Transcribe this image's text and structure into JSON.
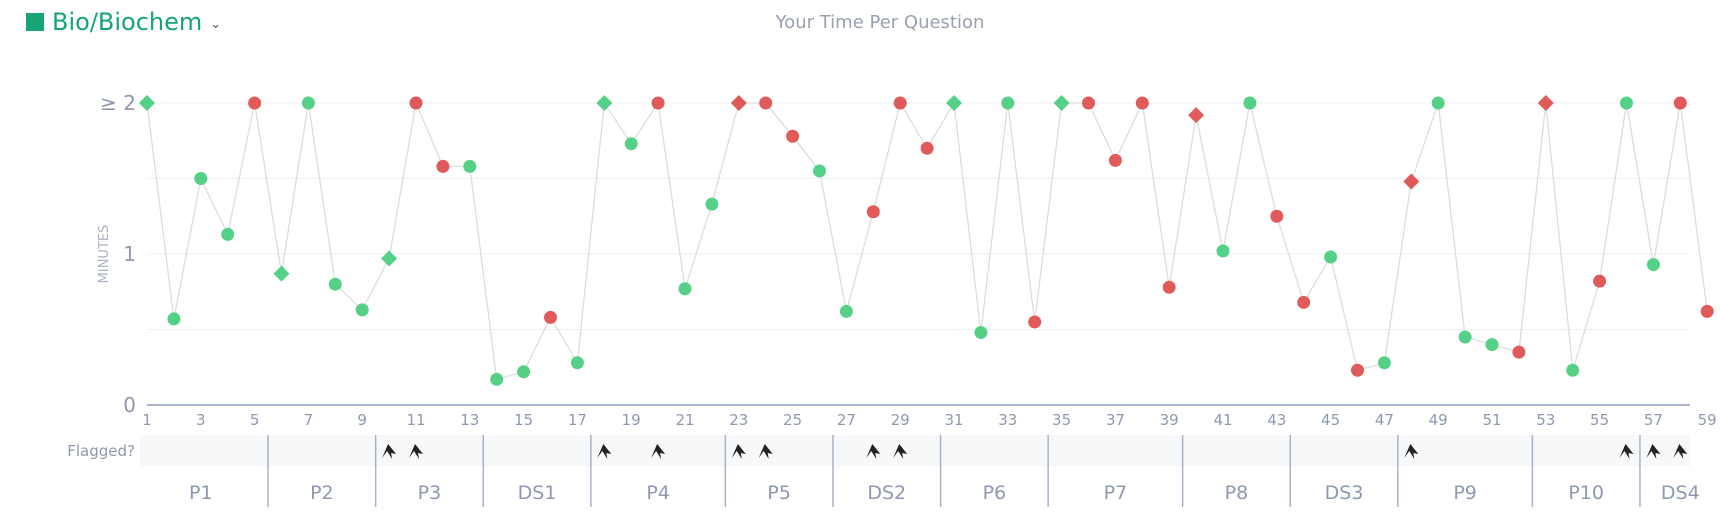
{
  "header": {
    "subject": "Bio/Biochem",
    "subject_color": "#17a673",
    "dropdown_icon": "chevron-down-icon"
  },
  "colors": {
    "correct": "#55d187",
    "incorrect": "#e05a5a",
    "line": "#dddddd",
    "axis": "#a9b3c7",
    "text": "#8e99b0"
  },
  "chart_data": {
    "type": "scatter",
    "title": "Your Time Per Question",
    "ylabel": "MINUTES",
    "xlabel": "",
    "ylim": [
      0,
      2
    ],
    "yticks": [
      {
        "value": 0,
        "label": "0"
      },
      {
        "value": 1,
        "label": "1"
      },
      {
        "value": 2,
        "label": "≥ 2"
      }
    ],
    "xticks": [
      1,
      3,
      5,
      7,
      9,
      11,
      13,
      15,
      17,
      19,
      21,
      23,
      25,
      27,
      29,
      31,
      33,
      35,
      37,
      39,
      41,
      43,
      45,
      47,
      49,
      51,
      53,
      55,
      57,
      59
    ],
    "grid": true,
    "legend": "none",
    "points": [
      {
        "q": 1,
        "minutes": 2.0,
        "status": "correct",
        "shape": "diamond"
      },
      {
        "q": 2,
        "minutes": 0.57,
        "status": "correct",
        "shape": "circle"
      },
      {
        "q": 3,
        "minutes": 1.5,
        "status": "correct",
        "shape": "circle"
      },
      {
        "q": 4,
        "minutes": 1.13,
        "status": "correct",
        "shape": "circle"
      },
      {
        "q": 5,
        "minutes": 2.0,
        "status": "incorrect",
        "shape": "circle"
      },
      {
        "q": 6,
        "minutes": 0.87,
        "status": "correct",
        "shape": "diamond"
      },
      {
        "q": 7,
        "minutes": 2.0,
        "status": "correct",
        "shape": "circle"
      },
      {
        "q": 8,
        "minutes": 0.8,
        "status": "correct",
        "shape": "circle"
      },
      {
        "q": 9,
        "minutes": 0.63,
        "status": "correct",
        "shape": "circle"
      },
      {
        "q": 10,
        "minutes": 0.97,
        "status": "correct",
        "shape": "diamond"
      },
      {
        "q": 11,
        "minutes": 2.0,
        "status": "incorrect",
        "shape": "circle"
      },
      {
        "q": 12,
        "minutes": 1.58,
        "status": "incorrect",
        "shape": "circle"
      },
      {
        "q": 13,
        "minutes": 1.58,
        "status": "correct",
        "shape": "circle"
      },
      {
        "q": 14,
        "minutes": 0.17,
        "status": "correct",
        "shape": "circle"
      },
      {
        "q": 15,
        "minutes": 0.22,
        "status": "correct",
        "shape": "circle"
      },
      {
        "q": 16,
        "minutes": 0.58,
        "status": "incorrect",
        "shape": "circle"
      },
      {
        "q": 17,
        "minutes": 0.28,
        "status": "correct",
        "shape": "circle"
      },
      {
        "q": 18,
        "minutes": 2.0,
        "status": "correct",
        "shape": "diamond"
      },
      {
        "q": 19,
        "minutes": 1.73,
        "status": "correct",
        "shape": "circle"
      },
      {
        "q": 20,
        "minutes": 2.0,
        "status": "incorrect",
        "shape": "circle"
      },
      {
        "q": 21,
        "minutes": 0.77,
        "status": "correct",
        "shape": "circle"
      },
      {
        "q": 22,
        "minutes": 1.33,
        "status": "correct",
        "shape": "circle"
      },
      {
        "q": 23,
        "minutes": 2.0,
        "status": "incorrect",
        "shape": "diamond"
      },
      {
        "q": 24,
        "minutes": 2.0,
        "status": "incorrect",
        "shape": "circle"
      },
      {
        "q": 25,
        "minutes": 1.78,
        "status": "incorrect",
        "shape": "circle"
      },
      {
        "q": 26,
        "minutes": 1.55,
        "status": "correct",
        "shape": "circle"
      },
      {
        "q": 27,
        "minutes": 0.62,
        "status": "correct",
        "shape": "circle"
      },
      {
        "q": 28,
        "minutes": 1.28,
        "status": "incorrect",
        "shape": "circle"
      },
      {
        "q": 29,
        "minutes": 2.0,
        "status": "incorrect",
        "shape": "circle"
      },
      {
        "q": 30,
        "minutes": 1.7,
        "status": "incorrect",
        "shape": "circle"
      },
      {
        "q": 31,
        "minutes": 2.0,
        "status": "correct",
        "shape": "diamond"
      },
      {
        "q": 32,
        "minutes": 0.48,
        "status": "correct",
        "shape": "circle"
      },
      {
        "q": 33,
        "minutes": 2.0,
        "status": "correct",
        "shape": "circle"
      },
      {
        "q": 34,
        "minutes": 0.55,
        "status": "incorrect",
        "shape": "circle"
      },
      {
        "q": 35,
        "minutes": 2.0,
        "status": "correct",
        "shape": "diamond"
      },
      {
        "q": 36,
        "minutes": 2.0,
        "status": "incorrect",
        "shape": "circle"
      },
      {
        "q": 37,
        "minutes": 1.62,
        "status": "incorrect",
        "shape": "circle"
      },
      {
        "q": 38,
        "minutes": 2.0,
        "status": "incorrect",
        "shape": "circle"
      },
      {
        "q": 39,
        "minutes": 0.78,
        "status": "incorrect",
        "shape": "circle"
      },
      {
        "q": 40,
        "minutes": 1.92,
        "status": "incorrect",
        "shape": "diamond"
      },
      {
        "q": 41,
        "minutes": 1.02,
        "status": "correct",
        "shape": "circle"
      },
      {
        "q": 42,
        "minutes": 2.0,
        "status": "correct",
        "shape": "circle"
      },
      {
        "q": 43,
        "minutes": 1.25,
        "status": "incorrect",
        "shape": "circle"
      },
      {
        "q": 44,
        "minutes": 0.68,
        "status": "incorrect",
        "shape": "circle"
      },
      {
        "q": 45,
        "minutes": 0.98,
        "status": "correct",
        "shape": "circle"
      },
      {
        "q": 46,
        "minutes": 0.23,
        "status": "incorrect",
        "shape": "circle"
      },
      {
        "q": 47,
        "minutes": 0.28,
        "status": "correct",
        "shape": "circle"
      },
      {
        "q": 48,
        "minutes": 1.48,
        "status": "incorrect",
        "shape": "diamond"
      },
      {
        "q": 49,
        "minutes": 2.0,
        "status": "correct",
        "shape": "circle"
      },
      {
        "q": 50,
        "minutes": 0.45,
        "status": "correct",
        "shape": "circle"
      },
      {
        "q": 51,
        "minutes": 0.4,
        "status": "correct",
        "shape": "circle"
      },
      {
        "q": 52,
        "minutes": 0.35,
        "status": "incorrect",
        "shape": "circle"
      },
      {
        "q": 53,
        "minutes": 2.0,
        "status": "incorrect",
        "shape": "diamond"
      },
      {
        "q": 54,
        "minutes": 0.23,
        "status": "correct",
        "shape": "circle"
      },
      {
        "q": 55,
        "minutes": 0.82,
        "status": "incorrect",
        "shape": "circle"
      },
      {
        "q": 56,
        "minutes": 2.0,
        "status": "correct",
        "shape": "circle"
      },
      {
        "q": 57,
        "minutes": 0.93,
        "status": "correct",
        "shape": "circle"
      },
      {
        "q": 58,
        "minutes": 2.0,
        "status": "incorrect",
        "shape": "circle"
      },
      {
        "q": 59,
        "minutes": 0.62,
        "status": "incorrect",
        "shape": "circle"
      }
    ],
    "flagged_label": "Flagged?",
    "flagged_icon": "flag-icon",
    "flagged_questions": [
      10,
      11,
      18,
      20,
      23,
      24,
      28,
      29,
      48,
      56,
      57,
      58
    ],
    "passages": [
      {
        "label": "P1",
        "start": 1,
        "end": 5
      },
      {
        "label": "P2",
        "start": 6,
        "end": 9
      },
      {
        "label": "P3",
        "start": 10,
        "end": 13
      },
      {
        "label": "DS1",
        "start": 14,
        "end": 17
      },
      {
        "label": "P4",
        "start": 18,
        "end": 22
      },
      {
        "label": "P5",
        "start": 23,
        "end": 26
      },
      {
        "label": "DS2",
        "start": 27,
        "end": 30
      },
      {
        "label": "P6",
        "start": 31,
        "end": 34
      },
      {
        "label": "P7",
        "start": 35,
        "end": 39
      },
      {
        "label": "P8",
        "start": 40,
        "end": 43
      },
      {
        "label": "DS3",
        "start": 44,
        "end": 47
      },
      {
        "label": "P9",
        "start": 48,
        "end": 52
      },
      {
        "label": "P10",
        "start": 53,
        "end": 56
      },
      {
        "label": "DS4",
        "start": 57,
        "end": 59
      }
    ]
  }
}
